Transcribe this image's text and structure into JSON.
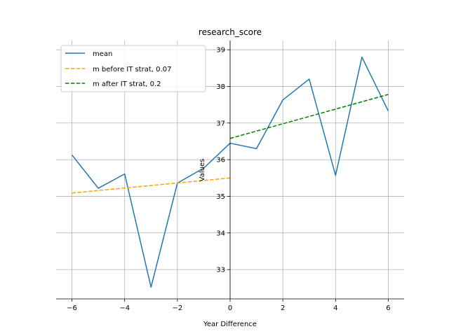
{
  "chart_data": {
    "type": "line",
    "title": "research_score",
    "xlabel": "Year Difference",
    "ylabel": "Values",
    "xlim": [
      -6.6,
      6.6
    ],
    "ylim": [
      32.2,
      39.25
    ],
    "xticks": [
      -6,
      -4,
      -2,
      0,
      2,
      4,
      6
    ],
    "yticks": [
      33,
      34,
      35,
      36,
      37,
      38,
      39
    ],
    "x_tick_labels": [
      "−6",
      "−4",
      "−2",
      "0",
      "2",
      "4",
      "6"
    ],
    "y_tick_labels": [
      "33",
      "34",
      "35",
      "36",
      "37",
      "38",
      "39"
    ],
    "grid": true,
    "legend_position": "top-left",
    "series": [
      {
        "name": "mean",
        "style": "solid",
        "color": "#1f77b4",
        "x": [
          -6,
          -5,
          -4,
          -3,
          -2,
          -1,
          0,
          1,
          2,
          3,
          4,
          5,
          6
        ],
        "y": [
          36.13,
          35.22,
          35.61,
          32.52,
          35.36,
          35.77,
          36.45,
          36.3,
          37.63,
          38.2,
          35.57,
          38.8,
          37.33
        ]
      },
      {
        "name": "m before IT strat, 0.07",
        "style": "dashed",
        "color": "#ffa500",
        "x": [
          -6,
          0
        ],
        "y": [
          35.09,
          35.5
        ]
      },
      {
        "name": "m after IT strat, 0.2",
        "style": "dashed",
        "color": "#008000",
        "x": [
          0,
          6
        ],
        "y": [
          36.58,
          37.78
        ]
      }
    ]
  }
}
